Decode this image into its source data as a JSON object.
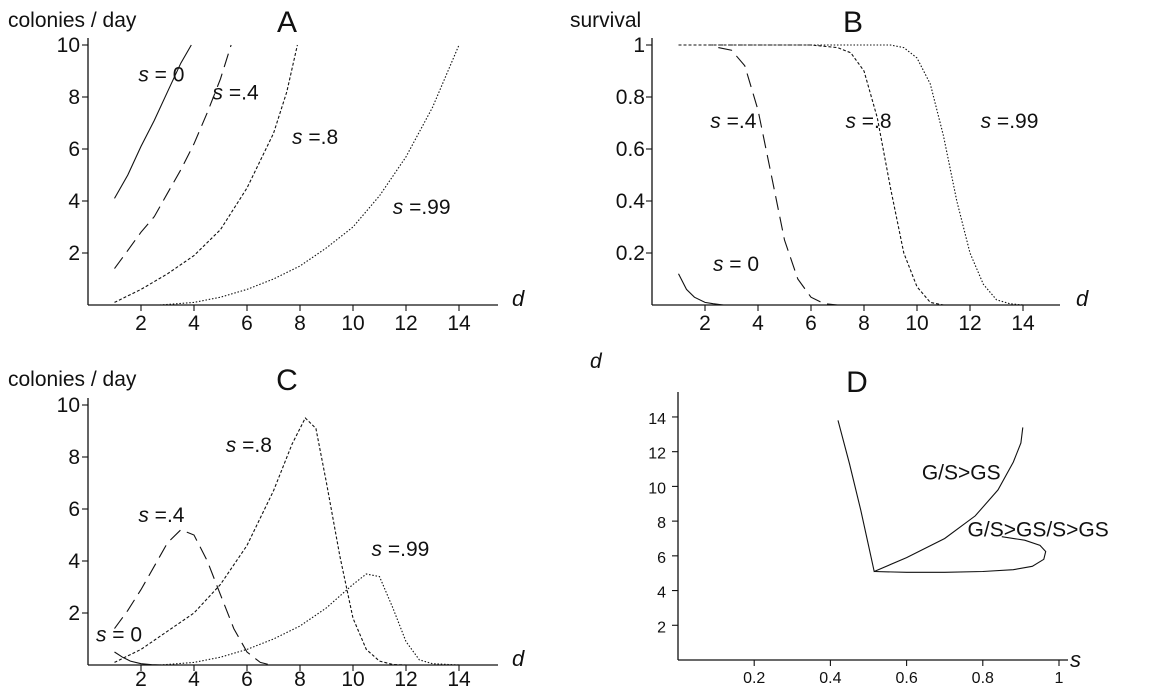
{
  "chart_data": [
    {
      "panel": "A",
      "type": "line",
      "title": "A",
      "ylabel": "colonies / day",
      "xlabel": "d",
      "xlim": [
        0,
        15.2
      ],
      "ylim": [
        0,
        10
      ],
      "xticks": [
        2,
        4,
        6,
        8,
        10,
        12,
        14
      ],
      "yticks": [
        2,
        4,
        6,
        8,
        10
      ],
      "series": [
        {
          "name": "s = 0",
          "style": "solid",
          "x": [
            1,
            1.5,
            2,
            2.5,
            3,
            3.5,
            3.9
          ],
          "y": [
            4.1,
            5.0,
            6.1,
            7.1,
            8.2,
            9.3,
            10
          ]
        },
        {
          "name": "s =.4",
          "style": "dashed",
          "x": [
            1,
            1.5,
            2,
            2.5,
            3,
            3.5,
            4,
            4.5,
            5,
            5.4
          ],
          "y": [
            1.4,
            2.1,
            2.8,
            3.4,
            4.3,
            5.2,
            6.2,
            7.4,
            8.7,
            10
          ]
        },
        {
          "name": "s =.8",
          "style": "dotdash",
          "x": [
            1,
            2,
            3,
            4,
            5,
            6,
            7,
            7.5,
            7.9
          ],
          "y": [
            0.1,
            0.6,
            1.2,
            1.9,
            2.9,
            4.5,
            6.6,
            8.2,
            10
          ]
        },
        {
          "name": "s =.99",
          "style": "dotted",
          "x": [
            2.7,
            4,
            5,
            6,
            7,
            8,
            9,
            10,
            11,
            12,
            13,
            14
          ],
          "y": [
            0,
            0.1,
            0.3,
            0.6,
            1.0,
            1.5,
            2.2,
            3.0,
            4.2,
            5.7,
            7.6,
            10
          ]
        }
      ],
      "labels": [
        {
          "text": "s = 0",
          "x": 1.9,
          "y": 8.6
        },
        {
          "text": "s =.4",
          "x": 4.7,
          "y": 7.9
        },
        {
          "text": "s =.8",
          "x": 7.7,
          "y": 6.2
        },
        {
          "text": "s =.99",
          "x": 11.5,
          "y": 3.5
        }
      ]
    },
    {
      "panel": "B",
      "type": "line",
      "title": "B",
      "ylabel": "survival",
      "xlabel": "d",
      "xlim": [
        0,
        15.2
      ],
      "ylim": [
        0,
        1
      ],
      "xticks": [
        2,
        4,
        6,
        8,
        10,
        12,
        14
      ],
      "yticks": [
        "0.2",
        "0.4",
        "0.6",
        "0.8",
        "1"
      ],
      "series": [
        {
          "name": "s = 0",
          "style": "solid",
          "x": [
            1,
            1.3,
            1.6,
            2,
            2.3,
            2.7
          ],
          "y": [
            0.12,
            0.06,
            0.03,
            0.01,
            0.005,
            0
          ]
        },
        {
          "name": "s =.4",
          "style": "dashed",
          "x": [
            2.5,
            3,
            3.5,
            4,
            4.5,
            5,
            5.5,
            6,
            6.5,
            7
          ],
          "y": [
            0.99,
            0.98,
            0.92,
            0.75,
            0.5,
            0.25,
            0.1,
            0.03,
            0.005,
            0
          ]
        },
        {
          "name": "s =.8",
          "style": "dotdash",
          "x": [
            1,
            4,
            6,
            7,
            7.5,
            8,
            8.5,
            9,
            9.5,
            10,
            10.5,
            11
          ],
          "y": [
            1,
            1,
            1,
            0.99,
            0.97,
            0.9,
            0.72,
            0.45,
            0.2,
            0.07,
            0.01,
            0
          ]
        },
        {
          "name": "s =.99",
          "style": "dotted",
          "x": [
            2,
            6,
            8,
            9,
            9.5,
            10,
            10.5,
            11,
            11.5,
            12,
            12.5,
            13,
            13.5,
            14
          ],
          "y": [
            1,
            1,
            1,
            1,
            0.99,
            0.95,
            0.85,
            0.65,
            0.4,
            0.2,
            0.08,
            0.02,
            0.005,
            0
          ]
        }
      ],
      "labels": [
        {
          "text": "s = 0",
          "x": 2.3,
          "y": 0.13
        },
        {
          "text": "s =.4",
          "x": 2.2,
          "y": 0.68
        },
        {
          "text": "s =.8",
          "x": 7.3,
          "y": 0.68
        },
        {
          "text": "s =.99",
          "x": 12.4,
          "y": 0.68
        }
      ]
    },
    {
      "panel": "C",
      "type": "line",
      "title": "C",
      "ylabel": "colonies / day",
      "xlabel": "d",
      "xlim": [
        0,
        15.2
      ],
      "ylim": [
        0,
        10
      ],
      "xticks": [
        2,
        4,
        6,
        8,
        10,
        12,
        14
      ],
      "yticks": [
        2,
        4,
        6,
        8,
        10
      ],
      "series": [
        {
          "name": "s = 0",
          "style": "solid",
          "x": [
            1,
            1.3,
            1.6,
            2,
            2.4,
            2.8
          ],
          "y": [
            0.5,
            0.3,
            0.15,
            0.05,
            0.01,
            0
          ]
        },
        {
          "name": "s =.4",
          "style": "dashed",
          "x": [
            1,
            1.5,
            2,
            2.5,
            3,
            3.5,
            4,
            4.5,
            5,
            5.5,
            6,
            6.5,
            6.9
          ],
          "y": [
            1.4,
            2.1,
            2.9,
            3.8,
            4.7,
            5.2,
            5.0,
            4.0,
            2.7,
            1.4,
            0.5,
            0.1,
            0
          ]
        },
        {
          "name": "s =.8",
          "style": "dotdash",
          "x": [
            1,
            2,
            3,
            4,
            5,
            6,
            7,
            7.7,
            8.2,
            8.6,
            9,
            9.5,
            10,
            10.5,
            11,
            11.5,
            12
          ],
          "y": [
            0.1,
            0.6,
            1.3,
            2.0,
            3.1,
            4.6,
            6.7,
            8.5,
            9.5,
            9.1,
            7.0,
            4.2,
            1.8,
            0.6,
            0.15,
            0.02,
            0
          ]
        },
        {
          "name": "s =.99",
          "style": "dotted",
          "x": [
            2.7,
            4,
            5,
            6,
            7,
            8,
            9,
            10,
            10.5,
            11,
            11.5,
            12,
            12.5,
            13,
            14
          ],
          "y": [
            0,
            0.1,
            0.3,
            0.6,
            1.0,
            1.5,
            2.2,
            3.1,
            3.5,
            3.4,
            2.2,
            0.9,
            0.2,
            0.05,
            0
          ]
        }
      ],
      "labels": [
        {
          "text": "s = 0",
          "x": 0.3,
          "y": 0.9
        },
        {
          "text": "s =.4",
          "x": 1.9,
          "y": 5.5
        },
        {
          "text": "s =.8",
          "x": 5.2,
          "y": 8.2
        },
        {
          "text": "s =.99",
          "x": 10.7,
          "y": 4.2
        }
      ]
    },
    {
      "panel": "D",
      "type": "line",
      "title": "D",
      "ylabel": "d",
      "xlabel": "s",
      "xlim": [
        0,
        1.02
      ],
      "ylim": [
        0,
        15
      ],
      "xticks": [
        "0.2",
        "0.4",
        "0.6",
        "0.8",
        "1"
      ],
      "yticks": [
        2,
        4,
        6,
        8,
        10,
        12,
        14
      ],
      "series": [
        {
          "name": "G/S>GS boundary",
          "style": "solid",
          "x": [
            0.42,
            0.45,
            0.48,
            0.5,
            0.515,
            0.6,
            0.7,
            0.78,
            0.84,
            0.88,
            0.9,
            0.905
          ],
          "y": [
            13.8,
            11.3,
            8.6,
            6.6,
            5.1,
            5.9,
            7.0,
            8.3,
            9.8,
            11.4,
            12.5,
            13.4
          ]
        },
        {
          "name": "G/S>GS/S>GS boundary",
          "style": "solid",
          "x": [
            0.515,
            0.6,
            0.7,
            0.8,
            0.88,
            0.93,
            0.96,
            0.965,
            0.95,
            0.91,
            0.85
          ],
          "y": [
            5.1,
            5.05,
            5.05,
            5.1,
            5.2,
            5.4,
            5.8,
            6.25,
            6.6,
            6.9,
            7.1
          ]
        }
      ],
      "labels": [
        {
          "text": "G/S>GS",
          "x": 0.64,
          "y": 10.4
        },
        {
          "text": "G/S>GS/S>GS",
          "x": 0.76,
          "y": 7.1
        }
      ]
    }
  ]
}
